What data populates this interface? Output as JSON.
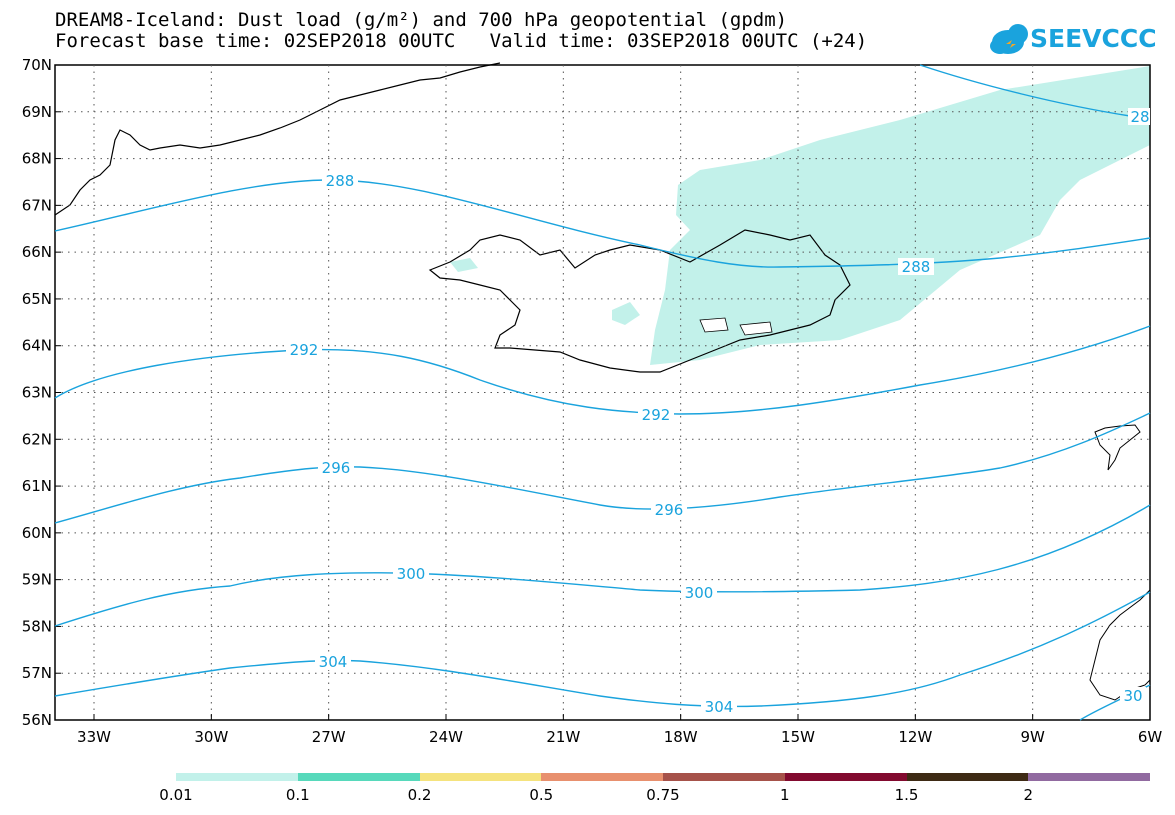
{
  "header": {
    "title_line1": "DREAM8-Iceland: Dust load (g/m²) and 700 hPa geopotential (gpdm)",
    "title_line2": "Forecast base time: 02SEP2018 00UTC   Valid time: 03SEP2018 00UTC (+24)"
  },
  "logo": {
    "text": "SEEVCCC",
    "color": "#1aa3dd"
  },
  "map": {
    "lat_labels": [
      "70N",
      "69N",
      "68N",
      "67N",
      "66N",
      "65N",
      "64N",
      "63N",
      "62N",
      "61N",
      "60N",
      "59N",
      "58N",
      "57N",
      "56N"
    ],
    "lon_labels": [
      "33W",
      "30W",
      "27W",
      "24W",
      "21W",
      "18W",
      "15W",
      "12W",
      "9W",
      "6W"
    ],
    "contour_color": "#1aa3dd",
    "contour_labels": [
      "288",
      "288",
      "28",
      "292",
      "292",
      "296",
      "296",
      "300",
      "300",
      "304",
      "304",
      "30"
    ],
    "dust_fill_color": "#c2f1ea"
  },
  "colorbar": {
    "colors": [
      "#c2f1ea",
      "#57d9bb",
      "#f5e37d",
      "#e8906e",
      "#a6524a",
      "#820a2f",
      "#3e2a14",
      "#916aa0"
    ],
    "labels": [
      "0.01",
      "0.1",
      "0.2",
      "0.5",
      "0.75",
      "1",
      "1.5",
      "2"
    ]
  }
}
